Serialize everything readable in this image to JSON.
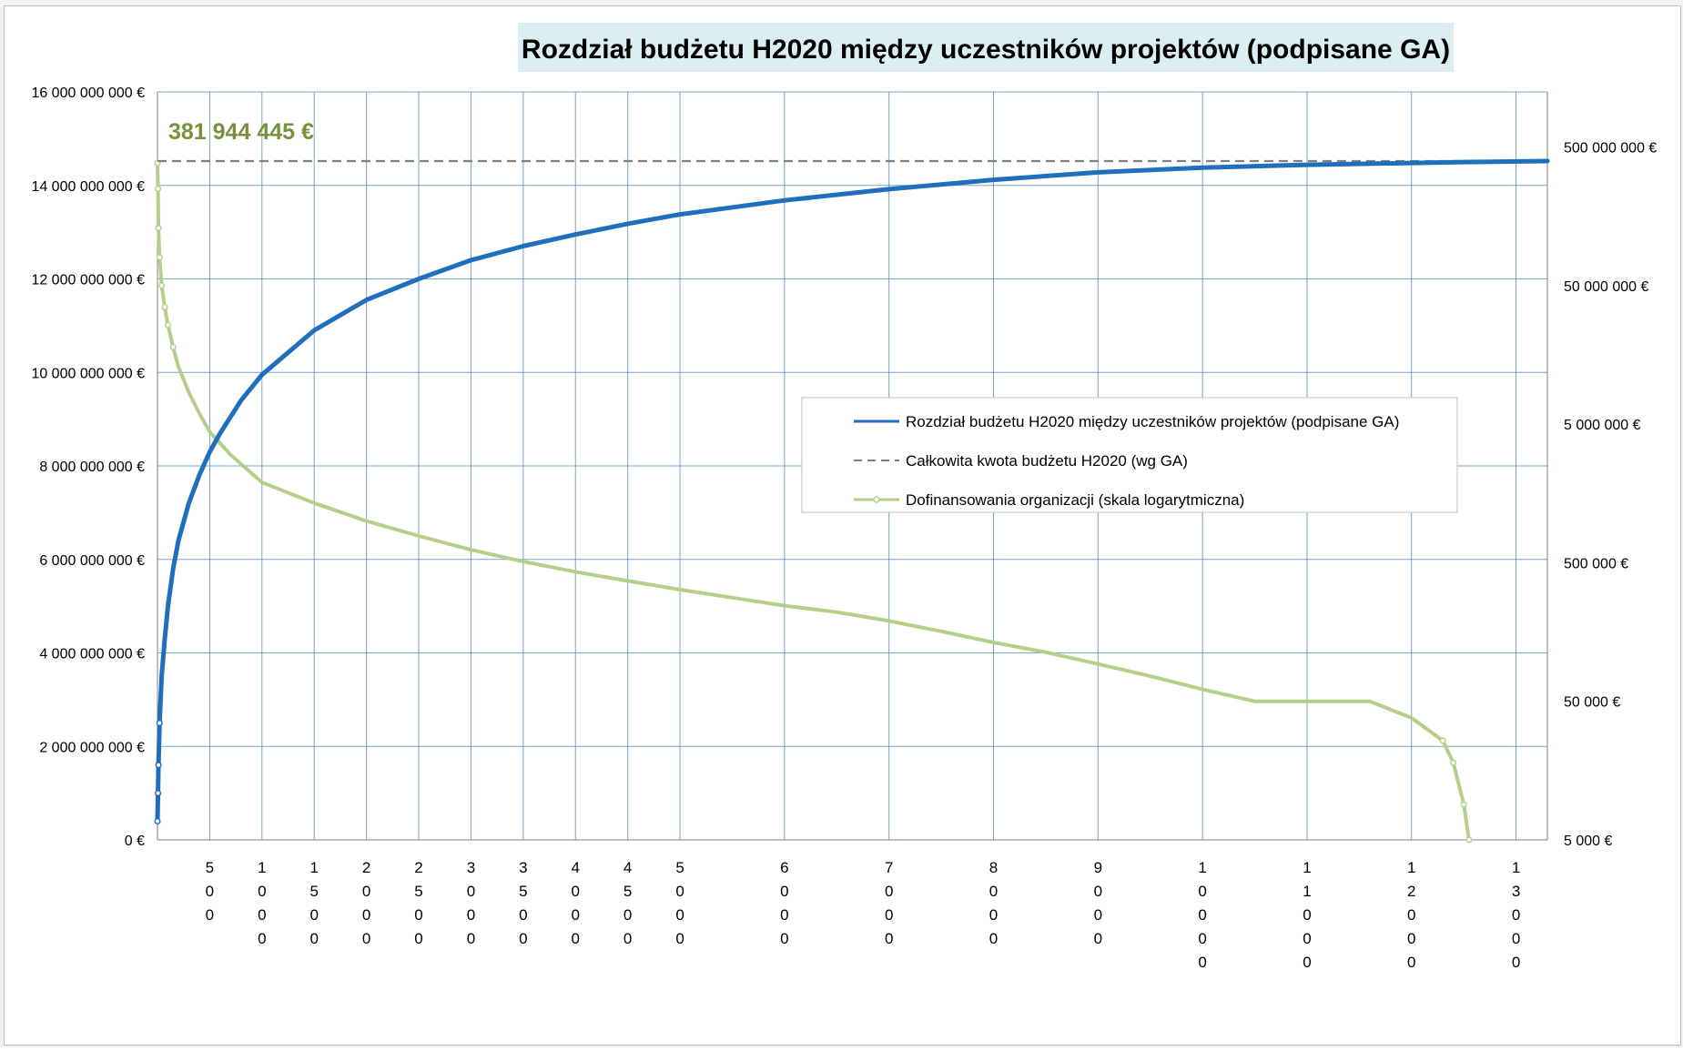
{
  "chart_data": {
    "type": "line",
    "title": "Rozdział budżetu H2020 między uczestników projektów (podpisane GA)",
    "annotation": "381 944 445 €",
    "left_axis": {
      "range": [
        0,
        16000000000
      ],
      "ticks": [
        0,
        2000000000,
        4000000000,
        6000000000,
        8000000000,
        10000000000,
        12000000000,
        14000000000,
        16000000000
      ],
      "tick_labels": [
        "0 €",
        "2 000 000 000 €",
        "4 000 000 000 €",
        "6 000 000 000 €",
        "8 000 000 000 €",
        "10 000 000 000 €",
        "12 000 000 000 €",
        "14 000 000 000 €",
        "16 000 000 000 €"
      ],
      "grid": true
    },
    "right_axis": {
      "scale": "log",
      "range": [
        5000,
        1250000000
      ],
      "ticks": [
        5000,
        50000,
        500000,
        5000000,
        50000000,
        500000000
      ],
      "tick_labels": [
        "5 000 €",
        "50 000 €",
        "500 000 €",
        "5 000 000 €",
        "50 000 000 €",
        "500 000 000 €"
      ]
    },
    "x_axis": {
      "range": [
        0,
        13300
      ],
      "ticks": [
        500,
        1000,
        1500,
        2000,
        2500,
        3000,
        3500,
        4000,
        4500,
        5000,
        6000,
        7000,
        8000,
        9000,
        10000,
        11000,
        12000,
        13000
      ],
      "tick_labels": [
        "500",
        "1000",
        "1500",
        "2000",
        "2500",
        "3000",
        "3500",
        "4000",
        "4500",
        "5000",
        "6000",
        "7000",
        "8000",
        "9000",
        "10000",
        "11000",
        "12000",
        "13000"
      ],
      "grid": true
    },
    "legend_position": "center-right",
    "series": [
      {
        "name": "Rozdział budżetu H2020 między uczestników projektów (podpisane GA)",
        "axis": "left",
        "style": "solid",
        "color": "#1f6fbd",
        "x": [
          0,
          5,
          10,
          20,
          40,
          70,
          100,
          150,
          200,
          300,
          400,
          500,
          600,
          800,
          1000,
          1500,
          2000,
          2500,
          3000,
          3500,
          4000,
          4500,
          5000,
          6000,
          7000,
          8000,
          9000,
          10000,
          11000,
          12000,
          12500,
          13300
        ],
        "y": [
          400000000,
          1000000000,
          1600000000,
          2500000000,
          3500000000,
          4300000000,
          5000000000,
          5800000000,
          6400000000,
          7200000000,
          7800000000,
          8300000000,
          8700000000,
          9400000000,
          9950000000,
          10900000000,
          11550000000,
          12000000000,
          12400000000,
          12700000000,
          12950000000,
          13180000000,
          13380000000,
          13680000000,
          13920000000,
          14120000000,
          14280000000,
          14380000000,
          14440000000,
          14480000000,
          14500000000,
          14520000000
        ]
      },
      {
        "name": "Całkowita kwota budżetu H2020 (wg GA)",
        "axis": "left",
        "style": "dashed",
        "color": "#7f7f7f",
        "x": [
          0,
          13300
        ],
        "y": [
          14520000000,
          14520000000
        ]
      },
      {
        "name": "Dofinansowania organizacji (skala logarytmiczna)",
        "axis": "right",
        "scale": "log",
        "style": "solid-markers",
        "color": "#b5cf8a",
        "x": [
          0,
          5,
          10,
          20,
          40,
          70,
          100,
          150,
          200,
          300,
          400,
          500,
          700,
          1000,
          1500,
          2000,
          2500,
          3000,
          3500,
          4000,
          4500,
          5000,
          5500,
          6000,
          6500,
          7000,
          7500,
          8000,
          8500,
          9000,
          9500,
          10000,
          10500,
          10600,
          11000,
          11500,
          11600,
          12000,
          12300,
          12400,
          12500,
          12550
        ],
        "y": [
          381944445,
          250000000,
          130000000,
          80000000,
          50000000,
          35000000,
          26000000,
          18000000,
          13000000,
          8500000,
          6000000,
          4400000,
          3000000,
          1900000,
          1350000,
          1000000,
          780000,
          620000,
          510000,
          430000,
          370000,
          320000,
          280000,
          245000,
          220000,
          190000,
          160000,
          133000,
          113000,
          93000,
          76000,
          61000,
          50000,
          50000,
          50000,
          50000,
          50000,
          38000,
          26000,
          18000,
          9000,
          5000
        ]
      }
    ]
  }
}
